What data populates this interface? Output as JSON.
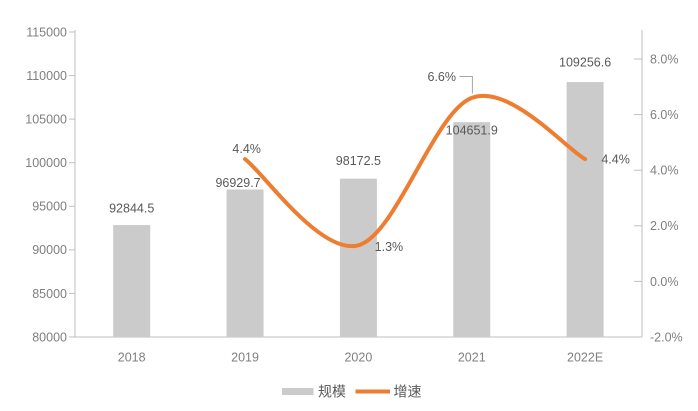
{
  "figure": {
    "background": "#ffffff"
  },
  "chart_data": {
    "type": "combo",
    "title": "",
    "categories": [
      "2018",
      "2019",
      "2020",
      "2021",
      "2022E"
    ],
    "series": [
      {
        "name": "规模",
        "type": "bar",
        "axis": "left",
        "color": "#CBCBCB",
        "values": [
          92844.5,
          96929.7,
          98172.5,
          104651.9,
          109256.6
        ],
        "data_labels": [
          "92844.5",
          "96929.7",
          "98172.5",
          "104651.9",
          "109256.6"
        ]
      },
      {
        "name": "增速",
        "type": "line",
        "axis": "right",
        "smooth": true,
        "color": "#ED7D31",
        "values": [
          null,
          4.4,
          1.3,
          6.6,
          4.4
        ],
        "data_labels": [
          null,
          "4.4%",
          "1.3%",
          "6.6%",
          "4.4%"
        ]
      }
    ],
    "left_axis": {
      "min": 80000,
      "max": 115000,
      "step": 5000,
      "tick_labels": [
        "80000",
        "85000",
        "90000",
        "95000",
        "100000",
        "105000",
        "110000",
        "115000"
      ]
    },
    "right_axis": {
      "min": -2,
      "step": 2,
      "tick_labels": [
        "-2.0%",
        "0.0%",
        "2.0%",
        "4.0%",
        "6.0%",
        "8.0%"
      ]
    },
    "legend": {
      "position": "bottom",
      "items": [
        {
          "label": "规模",
          "swatch": "bar",
          "color": "#CBCBCB"
        },
        {
          "label": "增速",
          "swatch": "line",
          "color": "#ED7D31"
        }
      ]
    },
    "grid": false,
    "colors": {
      "axis_line": "#BFBFBF",
      "tick_text": "#7F7F7F",
      "category_text": "#7F7F7F",
      "data_label_text": "#595959",
      "legend_text": "#595959",
      "leader_line": "#A6A6A6"
    }
  }
}
